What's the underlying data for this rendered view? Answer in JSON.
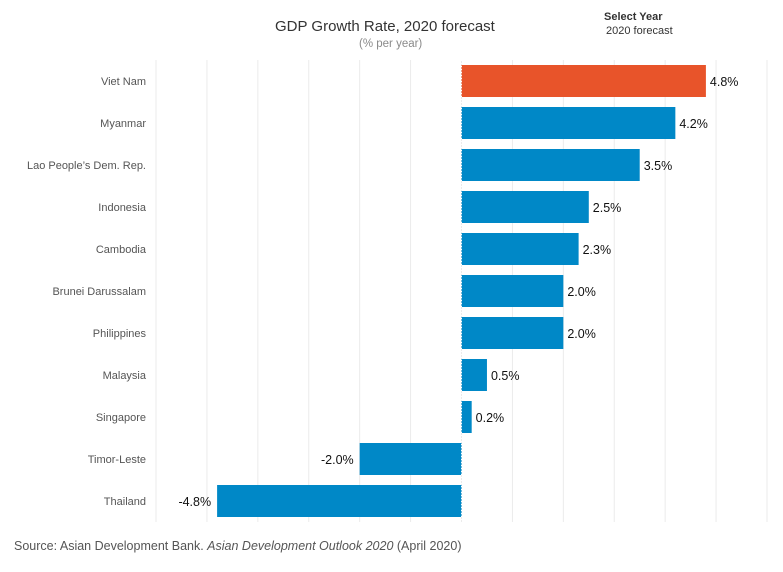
{
  "header": {
    "title": "GDP Growth Rate, 2020 forecast",
    "subtitle": "(% per year)"
  },
  "filter": {
    "label": "Select Year",
    "value": "2020 forecast"
  },
  "source": {
    "prefix": "Source: Asian Development Bank. ",
    "italic": "Asian Development Outlook 2020",
    "suffix": " (April 2020)"
  },
  "colors": {
    "highlight": "#e8542a",
    "bar": "#0088c7",
    "grid": "#ebebeb",
    "label": "#555555"
  },
  "chart_data": {
    "type": "bar",
    "orientation": "horizontal",
    "categories": [
      "Viet Nam",
      "Myanmar",
      "Lao People’s Dem. Rep.",
      "Indonesia",
      "Cambodia",
      "Brunei Darussalam",
      "Philippines",
      "Malaysia",
      "Singapore",
      "Timor-Leste",
      "Thailand"
    ],
    "values": [
      4.8,
      4.2,
      3.5,
      2.5,
      2.3,
      2.0,
      2.0,
      0.5,
      0.2,
      -2.0,
      -4.8
    ],
    "value_labels": [
      "4.8%",
      "4.2%",
      "3.5%",
      "2.5%",
      "2.3%",
      "2.0%",
      "2.0%",
      "0.5%",
      "0.2%",
      "-2.0%",
      "-4.8%"
    ],
    "highlight_category": "Viet Nam",
    "title": "GDP Growth Rate, 2020 forecast",
    "subtitle": "(% per year)",
    "xlim": [
      -6,
      6
    ],
    "grid": true
  }
}
